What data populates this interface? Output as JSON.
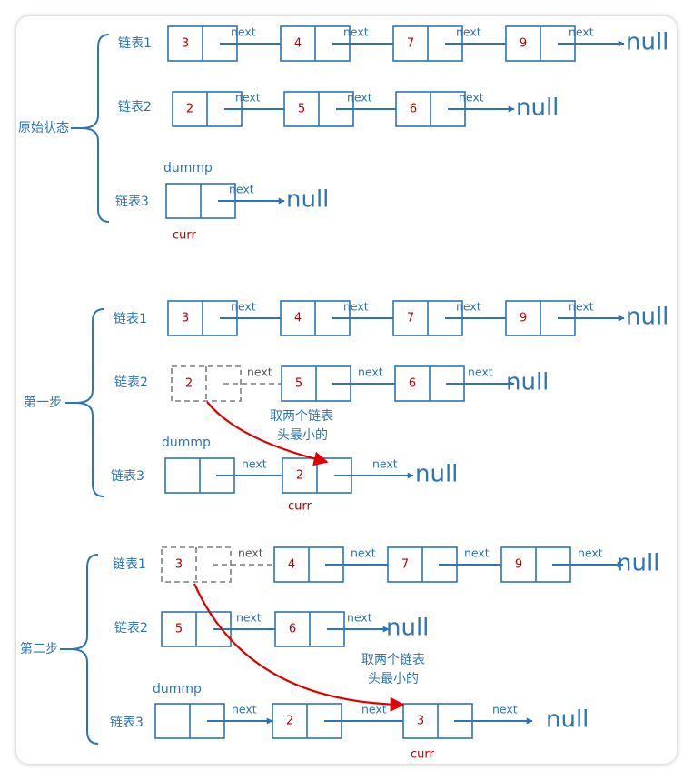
{
  "colors": {
    "accent": "#2e75b6",
    "value": "#c00000",
    "highlight": "#e00000",
    "ghost": "#7f7f7f"
  },
  "words": {
    "next": "next",
    "null": "null",
    "dummy": "dummp",
    "curr": "curr"
  },
  "sections": [
    {
      "title": "原始状态",
      "rows": [
        {
          "label": "链表1",
          "nodes": [
            "3",
            "4",
            "7",
            "9"
          ]
        },
        {
          "label": "链表2",
          "nodes": [
            "2",
            "5",
            "6"
          ]
        },
        {
          "label": "链表3",
          "nodes": [
            ""
          ]
        }
      ]
    },
    {
      "title": "第一步",
      "rows": [
        {
          "label": "链表1",
          "nodes": [
            "3",
            "4",
            "7",
            "9"
          ]
        },
        {
          "label": "链表2",
          "nodes": [
            "2",
            "5",
            "6"
          ]
        },
        {
          "label": "链表3",
          "nodes": [
            "",
            "2"
          ]
        }
      ],
      "note": [
        "取两个链表",
        "头最小的"
      ]
    },
    {
      "title": "第二步",
      "rows": [
        {
          "label": "链表1",
          "nodes": [
            "3",
            "4",
            "7",
            "9"
          ]
        },
        {
          "label": "链表2",
          "nodes": [
            "5",
            "6"
          ]
        },
        {
          "label": "链表3",
          "nodes": [
            "",
            "2",
            "3"
          ]
        }
      ],
      "note": [
        "取两个链表",
        "头最小的"
      ]
    }
  ]
}
